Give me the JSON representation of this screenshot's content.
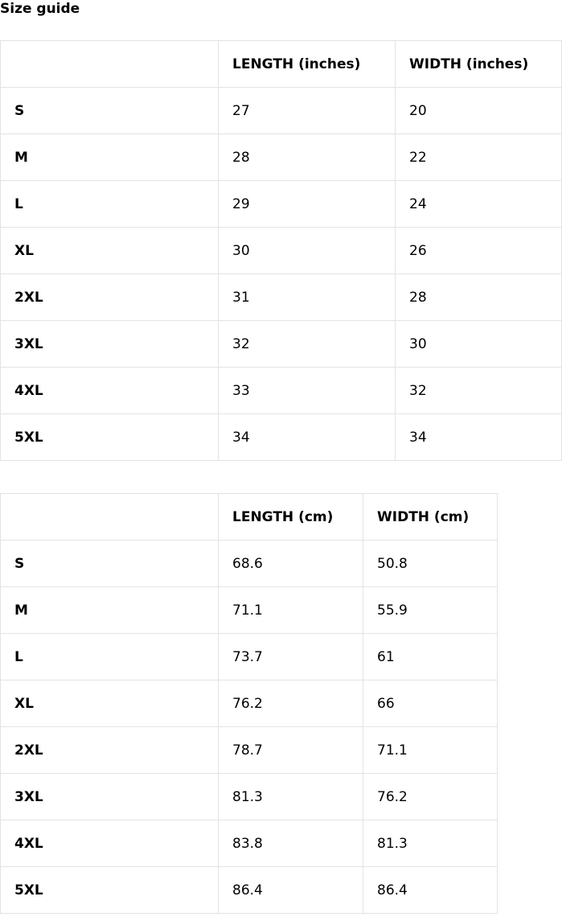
{
  "title": "Size guide",
  "tables": [
    {
      "headers": [
        "",
        "LENGTH (inches)",
        "WIDTH (inches)"
      ],
      "rows": [
        [
          "S",
          "27",
          "20"
        ],
        [
          "M",
          "28",
          "22"
        ],
        [
          "L",
          "29",
          "24"
        ],
        [
          "XL",
          "30",
          "26"
        ],
        [
          "2XL",
          "31",
          "28"
        ],
        [
          "3XL",
          "32",
          "30"
        ],
        [
          "4XL",
          "33",
          "32"
        ],
        [
          "5XL",
          "34",
          "34"
        ]
      ]
    },
    {
      "headers": [
        "",
        "LENGTH (cm)",
        "WIDTH (cm)"
      ],
      "rows": [
        [
          "S",
          "68.6",
          "50.8"
        ],
        [
          "M",
          "71.1",
          "55.9"
        ],
        [
          "L",
          "73.7",
          "61"
        ],
        [
          "XL",
          "76.2",
          "66"
        ],
        [
          "2XL",
          "78.7",
          "71.1"
        ],
        [
          "3XL",
          "81.3",
          "76.2"
        ],
        [
          "4XL",
          "83.8",
          "81.3"
        ],
        [
          "5XL",
          "86.4",
          "86.4"
        ]
      ]
    }
  ]
}
